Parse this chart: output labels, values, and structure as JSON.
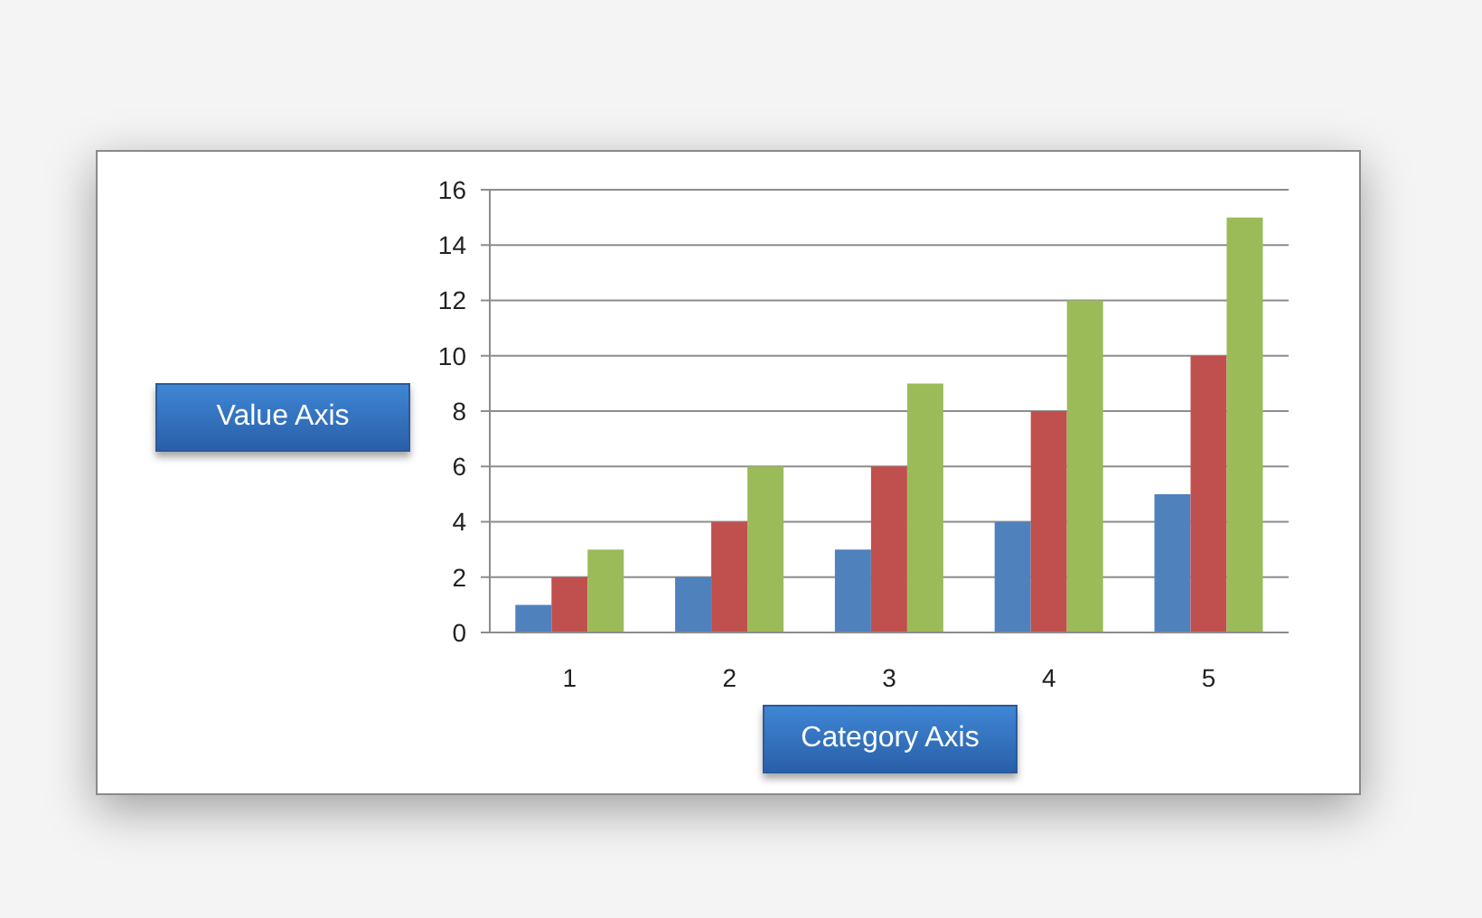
{
  "chart_data": {
    "type": "bar",
    "xlabel": "Category Axis",
    "ylabel": "Value Axis",
    "categories": [
      "1",
      "2",
      "3",
      "4",
      "5"
    ],
    "series": [
      {
        "color": "#4f81bd",
        "values": [
          1,
          2,
          3,
          4,
          5
        ]
      },
      {
        "color": "#c0504d",
        "values": [
          2,
          4,
          6,
          8,
          10
        ]
      },
      {
        "color": "#9bbb59",
        "values": [
          3,
          6,
          9,
          12,
          15
        ]
      }
    ],
    "ylim": [
      0,
      16
    ],
    "yticks": [
      0,
      2,
      4,
      6,
      8,
      10,
      12,
      14,
      16
    ],
    "grid": "y"
  }
}
